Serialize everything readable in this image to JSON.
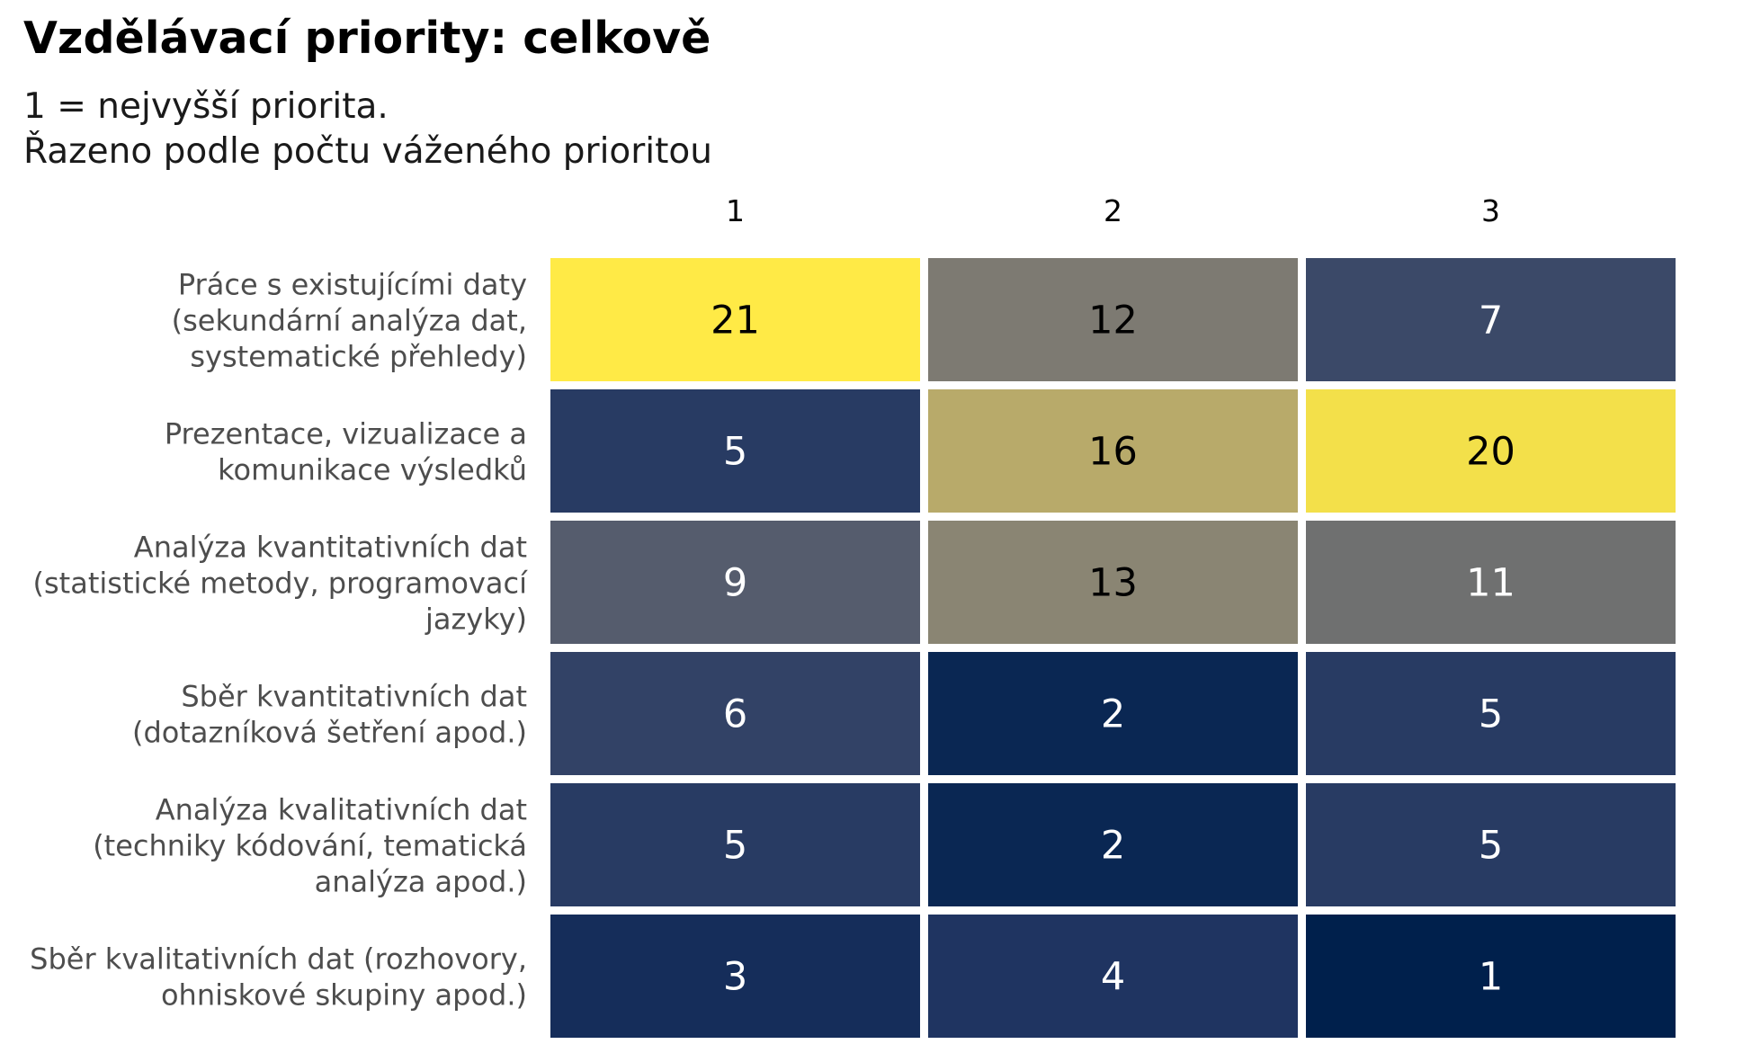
{
  "chart_data": {
    "type": "heatmap",
    "title": "Vzdělávací priority: celkově",
    "subtitle": [
      "1 = nejvyšší priorita.",
      "Řazeno podle počtu váženého prioritou"
    ],
    "columns": [
      "1",
      "2",
      "3"
    ],
    "rows": [
      [
        "Práce s existujícími daty",
        "(sekundární analýza dat,",
        "systematické přehledy)"
      ],
      [
        "Prezentace, vizualizace a",
        "komunikace výsledků"
      ],
      [
        "Analýza kvantitativních dat",
        "(statistické metody, programovací",
        "jazyky)"
      ],
      [
        "Sběr kvantitativních dat",
        "(dotazníková šetření apod.)"
      ],
      [
        "Analýza kvalitativních dat",
        "(techniky kódování, tematická",
        "analýza apod.)"
      ],
      [
        "Sběr kvalitativních dat (rozhovory,",
        "ohniskové skupiny apod.)"
      ]
    ],
    "values": [
      [
        21,
        12,
        7
      ],
      [
        5,
        16,
        20
      ],
      [
        9,
        13,
        11
      ],
      [
        6,
        2,
        5
      ],
      [
        5,
        2,
        5
      ],
      [
        3,
        4,
        1
      ]
    ],
    "colorscale": [
      "#00204c",
      "#ffea46"
    ],
    "value_range": [
      1,
      21
    ]
  }
}
